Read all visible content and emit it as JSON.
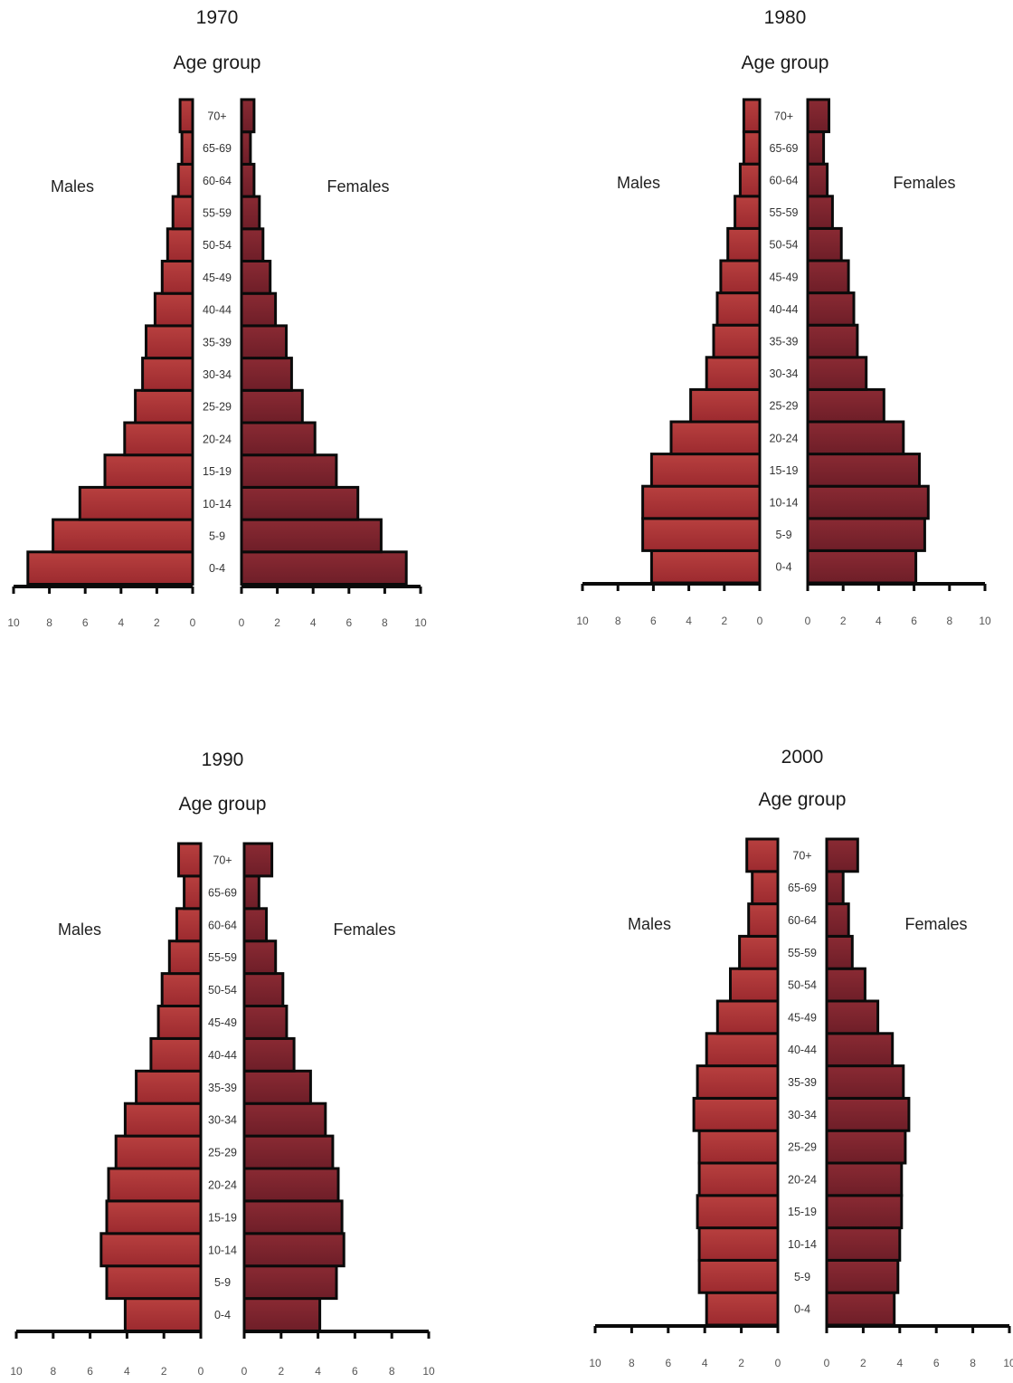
{
  "chart_data": [
    {
      "type": "bar",
      "orientation": "population-pyramid",
      "title": "1970",
      "category_title": "Age group",
      "left_label": "Males",
      "right_label": "Females",
      "categories": [
        "0-4",
        "5-9",
        "10-14",
        "15-19",
        "20-24",
        "25-29",
        "30-34",
        "35-39",
        "40-44",
        "45-49",
        "50-54",
        "55-59",
        "60-64",
        "65-69",
        "70+"
      ],
      "category_labels": [
        "0-4",
        "5-9",
        "10-14",
        "15-19",
        "20-24",
        "25-29",
        "30-34",
        "35-39",
        "40-44",
        "45-49",
        "50-54",
        "55-59",
        "60-64",
        "65-69",
        "70+"
      ],
      "series": [
        {
          "name": "Males",
          "values": [
            9.2,
            7.8,
            6.3,
            4.9,
            3.8,
            3.2,
            2.8,
            2.6,
            2.1,
            1.7,
            1.4,
            1.1,
            0.8,
            0.6,
            0.7
          ]
        },
        {
          "name": "Females",
          "values": [
            9.2,
            7.8,
            6.5,
            5.3,
            4.1,
            3.4,
            2.8,
            2.5,
            1.9,
            1.6,
            1.2,
            1.0,
            0.7,
            0.5,
            0.7
          ]
        }
      ],
      "xlim": [
        0,
        10
      ],
      "tick_values": [
        10,
        8,
        6,
        4,
        2,
        0
      ],
      "tick_labels_left": [
        "10",
        "8",
        "6",
        "4",
        "2",
        "0"
      ],
      "tick_labels_right": [
        "0",
        "2",
        "4",
        "6",
        "8",
        "10"
      ]
    },
    {
      "type": "bar",
      "orientation": "population-pyramid",
      "title": "1980",
      "category_title": "Age group",
      "left_label": "Males",
      "right_label": "Females",
      "categories": [
        "0-4",
        "5-9",
        "10-14",
        "15-19",
        "20-24",
        "25-29",
        "30-34",
        "35-39",
        "40-44",
        "45-49",
        "50-54",
        "55-59",
        "60-64",
        "65-69",
        "70+"
      ],
      "category_labels": [
        "0-4",
        "5-9",
        "10-14",
        "15-19",
        "20-24",
        "25-29",
        "30-34",
        "35-39",
        "40-44",
        "45-49",
        "50-54",
        "55-59",
        "60-64",
        "65-69",
        "70+"
      ],
      "series": [
        {
          "name": "Males",
          "values": [
            6.1,
            6.6,
            6.6,
            6.1,
            5.0,
            3.9,
            3.0,
            2.6,
            2.4,
            2.2,
            1.8,
            1.4,
            1.1,
            0.9,
            0.9
          ]
        },
        {
          "name": "Females",
          "values": [
            6.1,
            6.6,
            6.8,
            6.3,
            5.4,
            4.3,
            3.3,
            2.8,
            2.6,
            2.3,
            1.9,
            1.4,
            1.1,
            0.9,
            1.2
          ]
        }
      ],
      "xlim": [
        0,
        10
      ],
      "tick_values": [
        10,
        8,
        6,
        4,
        2,
        0
      ],
      "tick_labels_left": [
        "10",
        "8",
        "6",
        "4",
        "2",
        "0"
      ],
      "tick_labels_right": [
        "0",
        "2",
        "4",
        "6",
        "8",
        "10"
      ]
    },
    {
      "type": "bar",
      "orientation": "population-pyramid",
      "title": "1990",
      "category_title": "Age group",
      "left_label": "Males",
      "right_label": "Females",
      "categories": [
        "0-4",
        "5-9",
        "10-14",
        "15-19",
        "20-24",
        "25-29",
        "30-34",
        "35-39",
        "40-44",
        "45-49",
        "50-54",
        "55-59",
        "60-64",
        "65-69",
        "70+"
      ],
      "category_labels": [
        "0-4",
        "5-9",
        "10-14",
        "15-19",
        "20-24",
        "25-29",
        "30-34",
        "35-39",
        "40-44",
        "45-49",
        "50-54",
        "55-59",
        "60-64",
        "65-69",
        "70+"
      ],
      "series": [
        {
          "name": "Males",
          "values": [
            4.1,
            5.1,
            5.4,
            5.1,
            5.0,
            4.6,
            4.1,
            3.5,
            2.7,
            2.3,
            2.1,
            1.7,
            1.3,
            0.9,
            1.2
          ]
        },
        {
          "name": "Females",
          "values": [
            4.1,
            5.0,
            5.4,
            5.3,
            5.1,
            4.8,
            4.4,
            3.6,
            2.7,
            2.3,
            2.1,
            1.7,
            1.2,
            0.8,
            1.5
          ]
        }
      ],
      "xlim": [
        0,
        10
      ],
      "tick_values": [
        10,
        8,
        6,
        4,
        2,
        0
      ],
      "tick_labels_left": [
        "10",
        "8",
        "6",
        "4",
        "2",
        "0"
      ],
      "tick_labels_right": [
        "0",
        "2",
        "4",
        "6",
        "8",
        "10"
      ]
    },
    {
      "type": "bar",
      "orientation": "population-pyramid",
      "title": "2000",
      "category_title": "Age group",
      "left_label": "Males",
      "right_label": "Females",
      "categories": [
        "0-4",
        "5-9",
        "10-14",
        "15-19",
        "20-24",
        "25-29",
        "30-34",
        "35-39",
        "40-44",
        "45-49",
        "50-54",
        "55-59",
        "60-64",
        "65-69",
        "70+"
      ],
      "category_labels": [
        "0-4",
        "5-9",
        "10-14",
        "15-19",
        "20-24",
        "25-29",
        "30-34",
        "35-39",
        "40-44",
        "45-49",
        "50-54",
        "55-59",
        "60-64",
        "65-69",
        "70+"
      ],
      "series": [
        {
          "name": "Males",
          "values": [
            3.9,
            4.3,
            4.3,
            4.4,
            4.3,
            4.3,
            4.6,
            4.4,
            3.9,
            3.3,
            2.6,
            2.1,
            1.6,
            1.4,
            1.7
          ]
        },
        {
          "name": "Females",
          "values": [
            3.7,
            3.9,
            4.0,
            4.1,
            4.1,
            4.3,
            4.5,
            4.2,
            3.6,
            2.8,
            2.1,
            1.4,
            1.2,
            0.9,
            1.7
          ]
        }
      ],
      "xlim": [
        0,
        10
      ],
      "tick_values": [
        10,
        8,
        6,
        4,
        2,
        0
      ],
      "tick_labels_left": [
        "10",
        "8",
        "6",
        "4",
        "2",
        "0"
      ],
      "tick_labels_right": [
        "0",
        "2",
        "4",
        "6",
        "8",
        "10"
      ]
    }
  ],
  "colors": {
    "male_bar": "#9c2a2f",
    "male_bar_light": "#b8403f",
    "female_bar": "#6e1e28",
    "female_bar_light": "#8a2a33",
    "bar_outline": "#0a0a0a"
  }
}
